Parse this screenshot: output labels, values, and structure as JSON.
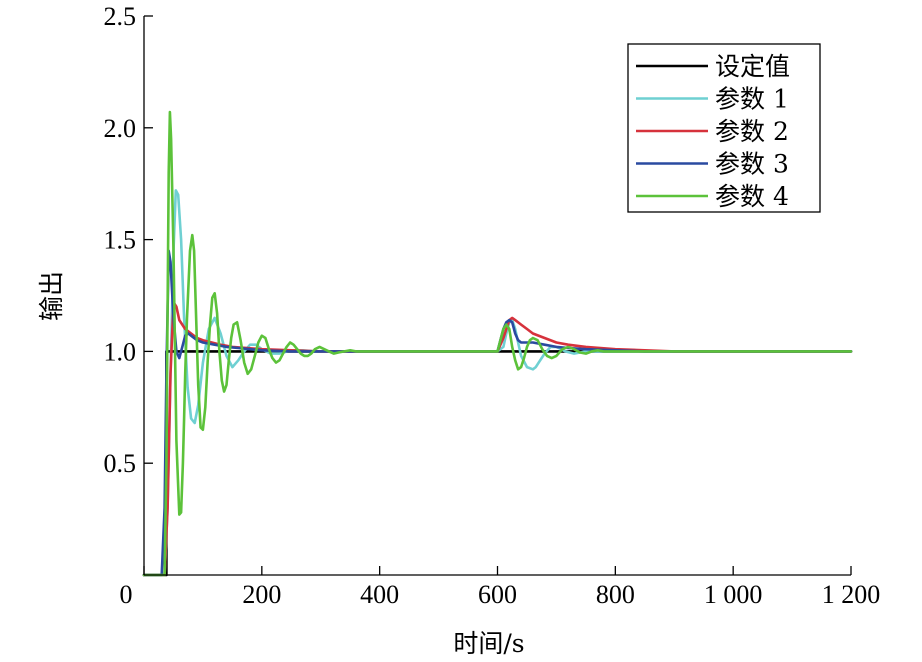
{
  "chart_data": {
    "type": "line",
    "title": "",
    "xlabel": "时间/s",
    "ylabel": "输出",
    "xlim": [
      0,
      1200
    ],
    "ylim": [
      0,
      2.5
    ],
    "x_ticks": [
      0,
      200,
      400,
      600,
      800,
      1000,
      1200
    ],
    "x_tick_labels": [
      "0",
      "200",
      "400",
      "600",
      "800",
      "1 000",
      "1 200"
    ],
    "y_ticks": [
      0.5,
      1.0,
      1.5,
      2.0,
      2.5
    ],
    "y_tick_labels": [
      "0.5",
      "1.0",
      "1.5",
      "2.0",
      "2.5"
    ],
    "grid": false,
    "legend_position": "top-right",
    "series": [
      {
        "name": "设定值",
        "color": "#000000",
        "x": [
          0,
          38,
          38,
          1200
        ],
        "y": [
          0,
          0,
          1.0,
          1.0
        ]
      },
      {
        "name": "参数 1",
        "color": "#6fd0d2",
        "x": [
          0,
          20,
          35,
          40,
          45,
          50,
          54,
          58,
          63,
          68,
          74,
          80,
          86,
          92,
          100,
          110,
          120,
          130,
          140,
          150,
          160,
          170,
          180,
          190,
          200,
          215,
          230,
          250,
          270,
          290,
          300,
          320,
          350,
          400,
          450,
          500,
          550,
          600,
          610,
          615,
          620,
          625,
          630,
          635,
          640,
          650,
          660,
          665,
          670,
          680,
          690,
          700,
          715,
          730,
          750,
          780,
          820,
          870,
          950,
          1200
        ],
        "y": [
          0,
          0,
          0,
          0.3,
          0.9,
          1.45,
          1.72,
          1.7,
          1.5,
          1.15,
          0.84,
          0.7,
          0.68,
          0.76,
          0.95,
          1.1,
          1.15,
          1.08,
          0.98,
          0.93,
          0.96,
          1.0,
          1.03,
          1.03,
          1.01,
          0.99,
          0.99,
          1.005,
          1.005,
          1.0,
          1.0,
          1.0,
          1.0,
          1.0,
          1.0,
          1.0,
          1.0,
          1.0,
          1.02,
          1.08,
          1.13,
          1.14,
          1.1,
          1.04,
          0.98,
          0.93,
          0.92,
          0.93,
          0.95,
          0.99,
          1.02,
          1.02,
          1.0,
          0.99,
          1.0,
          1.0,
          1.0,
          1.0,
          1.0,
          1.0
        ]
      },
      {
        "name": "参数 2",
        "color": "#d6323c",
        "x": [
          0,
          20,
          35,
          40,
          45,
          50,
          55,
          60,
          65,
          70,
          75,
          80,
          90,
          100,
          115,
          130,
          150,
          175,
          200,
          250,
          300,
          350,
          400,
          500,
          600,
          610,
          620,
          625,
          630,
          640,
          650,
          660,
          680,
          700,
          720,
          750,
          800,
          850,
          900,
          1200
        ],
        "y": [
          0,
          0,
          0,
          0.3,
          0.9,
          1.22,
          1.2,
          1.14,
          1.12,
          1.1,
          1.09,
          1.08,
          1.06,
          1.05,
          1.04,
          1.03,
          1.02,
          1.015,
          1.01,
          1.005,
          1.0,
          1.0,
          1.0,
          1.0,
          1.0,
          1.06,
          1.14,
          1.15,
          1.14,
          1.12,
          1.1,
          1.08,
          1.06,
          1.04,
          1.03,
          1.02,
          1.01,
          1.005,
          1.0,
          1.0
        ]
      },
      {
        "name": "参数 3",
        "color": "#2a4aa0",
        "x": [
          0,
          20,
          30,
          35,
          38,
          42,
          45,
          50,
          55,
          60,
          65,
          70,
          75,
          80,
          90,
          100,
          120,
          140,
          160,
          180,
          200,
          250,
          300,
          350,
          400,
          500,
          600,
          605,
          610,
          615,
          620,
          625,
          630,
          635,
          640,
          650,
          660,
          680,
          700,
          720,
          750,
          800,
          850,
          900,
          1200
        ],
        "y": [
          0,
          0,
          0,
          0.3,
          0.9,
          1.45,
          1.4,
          1.15,
          1.0,
          0.97,
          1.02,
          1.07,
          1.08,
          1.07,
          1.05,
          1.04,
          1.03,
          1.02,
          1.015,
          1.01,
          1.005,
          1.0,
          1.0,
          1.0,
          1.0,
          1.0,
          1.0,
          1.05,
          1.1,
          1.13,
          1.14,
          1.13,
          1.08,
          1.05,
          1.04,
          1.04,
          1.04,
          1.03,
          1.02,
          1.015,
          1.01,
          1.005,
          1.0,
          1.0,
          1.0
        ]
      },
      {
        "name": "参数 4",
        "color": "#5cc23a",
        "x": [
          0,
          20,
          35,
          38,
          40,
          42,
          44,
          46,
          50,
          55,
          60,
          63,
          66,
          68,
          70,
          73,
          78,
          82,
          85,
          88,
          92,
          96,
          100,
          104,
          108,
          112,
          116,
          120,
          124,
          128,
          132,
          136,
          140,
          144,
          148,
          152,
          158,
          164,
          170,
          176,
          182,
          188,
          194,
          200,
          206,
          212,
          218,
          224,
          230,
          236,
          242,
          248,
          254,
          260,
          266,
          272,
          278,
          284,
          290,
          298,
          306,
          314,
          322,
          330,
          340,
          350,
          360,
          380,
          400,
          450,
          500,
          600,
          605,
          610,
          615,
          620,
          625,
          630,
          635,
          640,
          645,
          650,
          655,
          660,
          668,
          676,
          684,
          692,
          700,
          710,
          720,
          730,
          740,
          750,
          760,
          770,
          780,
          800,
          850,
          900,
          1200
        ],
        "y": [
          0,
          0,
          0,
          0.5,
          1.2,
          1.8,
          2.07,
          1.95,
          1.45,
          0.6,
          0.27,
          0.28,
          0.5,
          0.7,
          0.9,
          1.15,
          1.45,
          1.52,
          1.45,
          1.2,
          0.85,
          0.66,
          0.65,
          0.75,
          0.95,
          1.12,
          1.24,
          1.26,
          1.17,
          1.0,
          0.87,
          0.82,
          0.85,
          0.96,
          1.06,
          1.12,
          1.13,
          1.05,
          0.95,
          0.9,
          0.92,
          0.98,
          1.04,
          1.07,
          1.06,
          1.01,
          0.97,
          0.95,
          0.96,
          0.99,
          1.02,
          1.04,
          1.03,
          1.01,
          0.99,
          0.98,
          0.98,
          0.99,
          1.01,
          1.02,
          1.01,
          1.0,
          0.99,
          0.995,
          1.0,
          1.005,
          1.0,
          1.0,
          1.0,
          1.0,
          1.0,
          1.0,
          1.05,
          1.1,
          1.12,
          1.1,
          1.02,
          0.96,
          0.92,
          0.93,
          0.97,
          1.02,
          1.05,
          1.06,
          1.05,
          1.01,
          0.98,
          0.97,
          0.98,
          1.01,
          1.02,
          1.01,
          0.995,
          0.99,
          1.0,
          1.005,
          1.0,
          1.0,
          1.0,
          1.0,
          1.0
        ]
      }
    ]
  }
}
